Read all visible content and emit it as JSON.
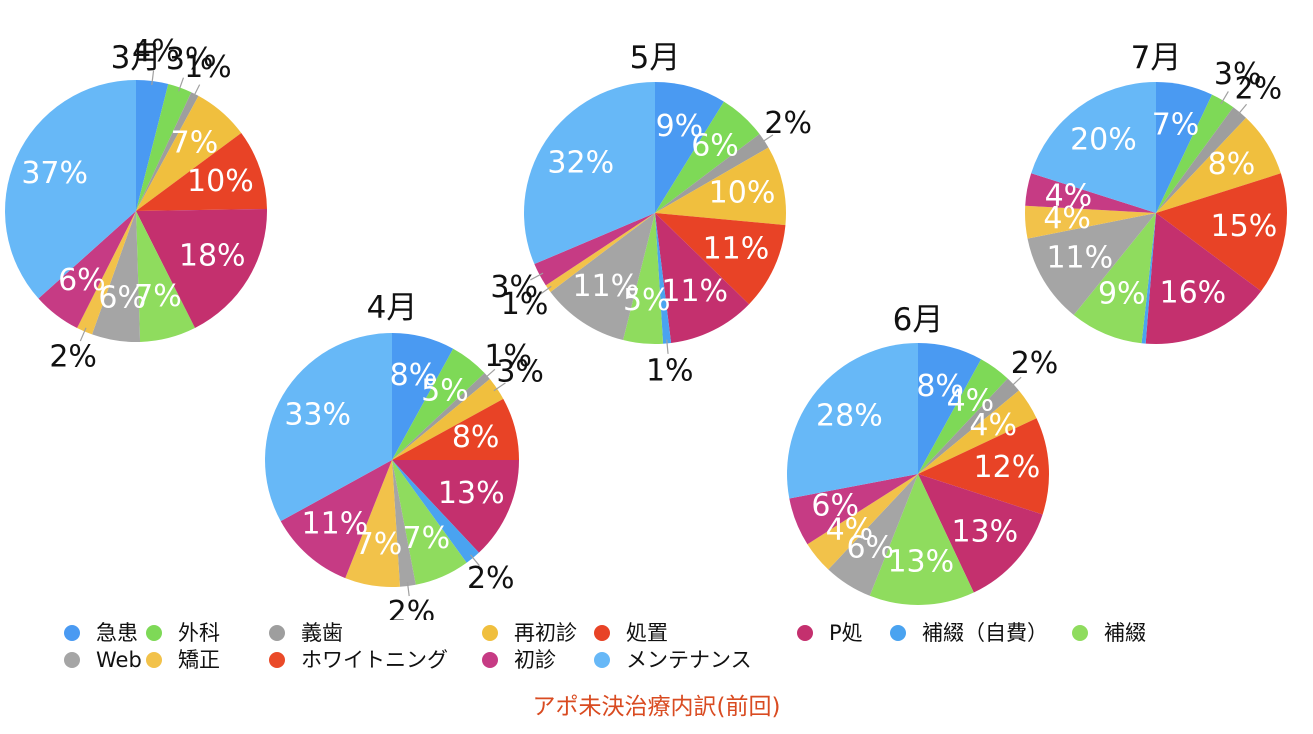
{
  "chart_data": {
    "type": "pie",
    "footer": "アポ未決治療内訳(前回)",
    "legend": [
      {
        "label": "急患",
        "color": "#4a9af2"
      },
      {
        "label": "外科",
        "color": "#7ed957"
      },
      {
        "label": "義歯",
        "color": "#9e9e9e"
      },
      {
        "label": "再初診",
        "color": "#f0bf3e"
      },
      {
        "label": "処置",
        "color": "#e84326"
      },
      {
        "label": "P処",
        "color": "#c4306e"
      },
      {
        "label": "補綴（自費）",
        "color": "#4aa3f0"
      },
      {
        "label": "補綴",
        "color": "#8fdc5e"
      },
      {
        "label": "Web",
        "color": "#a5a5a5"
      },
      {
        "label": "矯正",
        "color": "#f2c24a"
      },
      {
        "label": "ホワイトニング",
        "color": "#ea4a28"
      },
      {
        "label": "初診",
        "color": "#c63b84"
      },
      {
        "label": "メンテナンス",
        "color": "#67b8f7"
      }
    ],
    "pies": [
      {
        "title": "3月",
        "slices": [
          {
            "category": "急患",
            "value": 4,
            "label": "4%"
          },
          {
            "category": "外科",
            "value": 3,
            "label": "3%"
          },
          {
            "category": "義歯",
            "value": 1,
            "label": "1%"
          },
          {
            "category": "再初診",
            "value": 7,
            "label": "7%"
          },
          {
            "category": "処置",
            "value": 10,
            "label": "10%"
          },
          {
            "category": "P処",
            "value": 18,
            "label": "18%"
          },
          {
            "category": "補綴（自費）",
            "value": 0,
            "label": ""
          },
          {
            "category": "補綴",
            "value": 7,
            "label": "7%"
          },
          {
            "category": "Web",
            "value": 6,
            "label": "6%"
          },
          {
            "category": "矯正",
            "value": 2,
            "label": "2%"
          },
          {
            "category": "ホワイトニング",
            "value": 0,
            "label": ""
          },
          {
            "category": "初診",
            "value": 6,
            "label": "6%"
          },
          {
            "category": "メンテナンス",
            "value": 37,
            "label": "37%"
          }
        ]
      },
      {
        "title": "4月",
        "slices": [
          {
            "category": "急患",
            "value": 8,
            "label": "8%"
          },
          {
            "category": "外科",
            "value": 5,
            "label": "5%"
          },
          {
            "category": "義歯",
            "value": 1,
            "label": "1%"
          },
          {
            "category": "再初診",
            "value": 3,
            "label": "3%"
          },
          {
            "category": "処置",
            "value": 8,
            "label": "8%"
          },
          {
            "category": "P処",
            "value": 13,
            "label": "13%"
          },
          {
            "category": "補綴（自費）",
            "value": 2,
            "label": "2%"
          },
          {
            "category": "補綴",
            "value": 7,
            "label": "7%"
          },
          {
            "category": "Web",
            "value": 2,
            "label": "2%"
          },
          {
            "category": "矯正",
            "value": 7,
            "label": "7%"
          },
          {
            "category": "ホワイトニング",
            "value": 0,
            "label": ""
          },
          {
            "category": "初診",
            "value": 11,
            "label": "11%"
          },
          {
            "category": "メンテナンス",
            "value": 33,
            "label": "33%"
          }
        ]
      },
      {
        "title": "5月",
        "slices": [
          {
            "category": "急患",
            "value": 9,
            "label": "9%"
          },
          {
            "category": "外科",
            "value": 6,
            "label": "6%"
          },
          {
            "category": "義歯",
            "value": 2,
            "label": "2%"
          },
          {
            "category": "再初診",
            "value": 10,
            "label": "10%"
          },
          {
            "category": "処置",
            "value": 11,
            "label": "11%"
          },
          {
            "category": "P処",
            "value": 11,
            "label": "11%"
          },
          {
            "category": "補綴（自費）",
            "value": 1,
            "label": "1%"
          },
          {
            "category": "補綴",
            "value": 5,
            "label": "5%"
          },
          {
            "category": "Web",
            "value": 11,
            "label": "11%"
          },
          {
            "category": "矯正",
            "value": 1,
            "label": "1%"
          },
          {
            "category": "ホワイトニング",
            "value": 0,
            "label": ""
          },
          {
            "category": "初診",
            "value": 3,
            "label": "3%"
          },
          {
            "category": "メンテナンス",
            "value": 32,
            "label": "32%"
          }
        ]
      },
      {
        "title": "6月",
        "slices": [
          {
            "category": "急患",
            "value": 8,
            "label": "8%"
          },
          {
            "category": "外科",
            "value": 4,
            "label": "4%"
          },
          {
            "category": "義歯",
            "value": 2,
            "label": "2%"
          },
          {
            "category": "再初診",
            "value": 4,
            "label": "4%"
          },
          {
            "category": "処置",
            "value": 12,
            "label": "12%"
          },
          {
            "category": "P処",
            "value": 13,
            "label": "13%"
          },
          {
            "category": "補綴（自費）",
            "value": 0,
            "label": ""
          },
          {
            "category": "補綴",
            "value": 13,
            "label": "13%"
          },
          {
            "category": "Web",
            "value": 6,
            "label": "6%"
          },
          {
            "category": "矯正",
            "value": 4,
            "label": "4%"
          },
          {
            "category": "ホワイトニング",
            "value": 0,
            "label": ""
          },
          {
            "category": "初診",
            "value": 6,
            "label": "6%"
          },
          {
            "category": "メンテナンス",
            "value": 28,
            "label": "28%"
          }
        ]
      },
      {
        "title": "7月",
        "slices": [
          {
            "category": "急患",
            "value": 7,
            "label": "7%"
          },
          {
            "category": "外科",
            "value": 3,
            "label": "3%"
          },
          {
            "category": "義歯",
            "value": 2,
            "label": "2%"
          },
          {
            "category": "再初診",
            "value": 8,
            "label": "8%"
          },
          {
            "category": "処置",
            "value": 15,
            "label": "15%"
          },
          {
            "category": "P処",
            "value": 16,
            "label": "16%"
          },
          {
            "category": "補綴（自費）",
            "value": 0.5,
            "label": ""
          },
          {
            "category": "補綴",
            "value": 9,
            "label": "9%"
          },
          {
            "category": "Web",
            "value": 11,
            "label": "11%"
          },
          {
            "category": "矯正",
            "value": 4,
            "label": "4%"
          },
          {
            "category": "ホワイトニング",
            "value": 0,
            "label": ""
          },
          {
            "category": "初診",
            "value": 4,
            "label": "4%"
          },
          {
            "category": "メンテナンス",
            "value": 20,
            "label": "20%"
          }
        ]
      }
    ]
  }
}
